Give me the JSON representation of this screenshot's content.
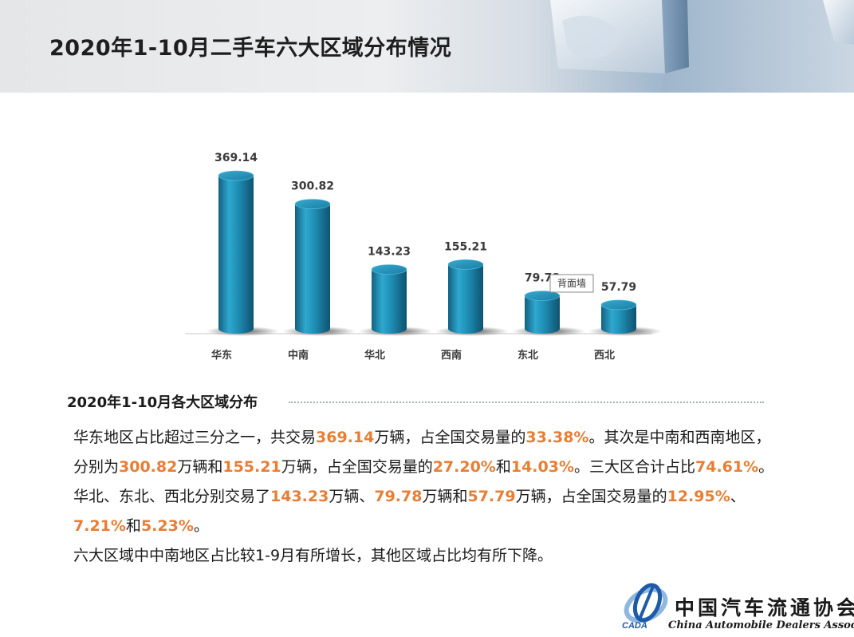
{
  "page": {
    "title": "2020年1-10月二手车六大区域分布情况"
  },
  "chart_data": {
    "type": "bar",
    "categories": [
      "华东",
      "中南",
      "华北",
      "西南",
      "东北",
      "西北"
    ],
    "values": [
      369.14,
      300.82,
      143.23,
      155.21,
      79.78,
      57.79
    ],
    "value_labels": [
      "369.14",
      "300.82",
      "143.23",
      "155.21",
      "79.78",
      "57.79"
    ],
    "bar_color": "#1f8fb5",
    "tooltip": "背面墙",
    "grid": false,
    "legend": "none"
  },
  "summary": {
    "heading": "2020年1-10月各大区域分布",
    "segments": [
      {
        "text": "华东地区占比超过三分之一，共交易",
        "hl": false
      },
      {
        "text": "369.14",
        "hl": true
      },
      {
        "text": "万辆，占全国交易量的",
        "hl": false
      },
      {
        "text": "33.38%",
        "hl": true
      },
      {
        "text": "。其次是中南和西南地区，分别为",
        "hl": false
      },
      {
        "text": "300.82",
        "hl": true
      },
      {
        "text": "万辆和",
        "hl": false
      },
      {
        "text": "155.21",
        "hl": true
      },
      {
        "text": "万辆，占全国交易量的",
        "hl": false
      },
      {
        "text": "27.20%",
        "hl": true
      },
      {
        "text": "和",
        "hl": false
      },
      {
        "text": "14.03%",
        "hl": true
      },
      {
        "text": "。三大区合计占比",
        "hl": false
      },
      {
        "text": "74.61%",
        "hl": true
      },
      {
        "text": "。华北、东北、西北分别交易了",
        "hl": false
      },
      {
        "text": "143.23",
        "hl": true
      },
      {
        "text": "万辆、",
        "hl": false
      },
      {
        "text": "79.78",
        "hl": true
      },
      {
        "text": "万辆和",
        "hl": false
      },
      {
        "text": "57.79",
        "hl": true
      },
      {
        "text": "万辆，占全国交易量的",
        "hl": false
      },
      {
        "text": "12.95%",
        "hl": true
      },
      {
        "text": "、",
        "hl": false
      },
      {
        "text": "7.21%",
        "hl": true
      },
      {
        "text": "和",
        "hl": false
      },
      {
        "text": "5.23%",
        "hl": true
      },
      {
        "text": "。",
        "hl": false
      }
    ],
    "note": "六大区域中中南地区占比较1-9月有所增长，其他区域占比均有所下降。"
  },
  "logo": {
    "name_cn": "中国汽车流通协会",
    "name_en": "China Automobile Dealers Association",
    "abbr": "CADA",
    "colors": {
      "blue": "#1d5aa8",
      "light": "#8fb8e0"
    }
  }
}
